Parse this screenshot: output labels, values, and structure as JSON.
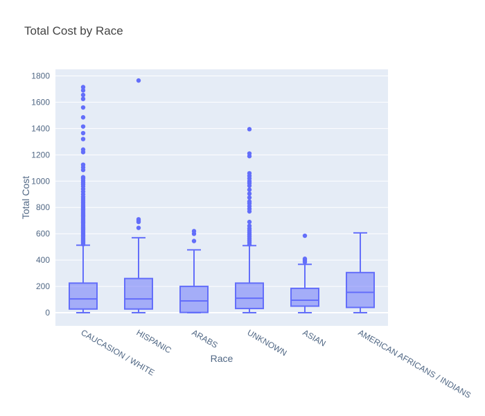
{
  "chart_data": {
    "type": "box",
    "title": "Total Cost by Race",
    "xlabel": "Race",
    "ylabel": "Total Cost",
    "ylim": [
      -100,
      1850
    ],
    "yticks": [
      0,
      200,
      400,
      600,
      800,
      1000,
      1200,
      1400,
      1600,
      1800
    ],
    "yticklabels": [
      "0",
      "200",
      "400",
      "600",
      "800",
      "1000",
      "1200",
      "1400",
      "1600",
      "1800"
    ],
    "grid": true,
    "legend": "none",
    "colors": {
      "box": "#636efa",
      "fill": "rgba(99,110,250,0.5)",
      "plot_bg": "#e5ecf6"
    },
    "categories": [
      "CAUCASION / WHITE",
      "HISPANIC",
      "ARABS",
      "UNKNOWN",
      "ASIAN",
      "AMERICAN AFRICANS / INDIANS"
    ],
    "boxes": [
      {
        "category": "CAUCASION / WHITE",
        "min": 0,
        "q1": 28,
        "median": 105,
        "q3": 225,
        "max": 513,
        "outliers": [
          520,
          530,
          540,
          550,
          560,
          570,
          580,
          590,
          600,
          610,
          620,
          630,
          640,
          650,
          660,
          670,
          680,
          690,
          700,
          710,
          720,
          730,
          740,
          750,
          760,
          770,
          780,
          790,
          800,
          810,
          820,
          835,
          850,
          865,
          880,
          900,
          920,
          940,
          960,
          975,
          990,
          1005,
          1020,
          1030,
          1085,
          1105,
          1125,
          1220,
          1240,
          1320,
          1365,
          1415,
          1485,
          1560,
          1625,
          1655,
          1690,
          1715
        ]
      },
      {
        "category": "HISPANIC",
        "min": 0,
        "q1": 28,
        "median": 105,
        "q3": 260,
        "max": 570,
        "outliers": [
          645,
          690,
          700,
          710,
          1765
        ]
      },
      {
        "category": "ARABS",
        "min": 0,
        "q1": 2,
        "median": 90,
        "q3": 200,
        "max": 478,
        "outliers": [
          545,
          600,
          620
        ]
      },
      {
        "category": "UNKNOWN",
        "min": 0,
        "q1": 32,
        "median": 110,
        "q3": 225,
        "max": 510,
        "outliers": [
          520,
          535,
          550,
          565,
          580,
          595,
          610,
          625,
          640,
          660,
          690,
          770,
          790,
          810,
          830,
          845,
          875,
          905,
          935,
          965,
          985,
          1000,
          1020,
          1040,
          1060,
          1190,
          1210,
          1395
        ]
      },
      {
        "category": "ASIAN",
        "min": 0,
        "q1": 50,
        "median": 95,
        "q3": 185,
        "max": 368,
        "outliers": [
          385,
          400,
          410,
          585
        ]
      },
      {
        "category": "AMERICAN AFRICANS / INDIANS",
        "min": 0,
        "q1": 40,
        "median": 155,
        "q3": 305,
        "max": 607,
        "outliers": []
      }
    ]
  }
}
